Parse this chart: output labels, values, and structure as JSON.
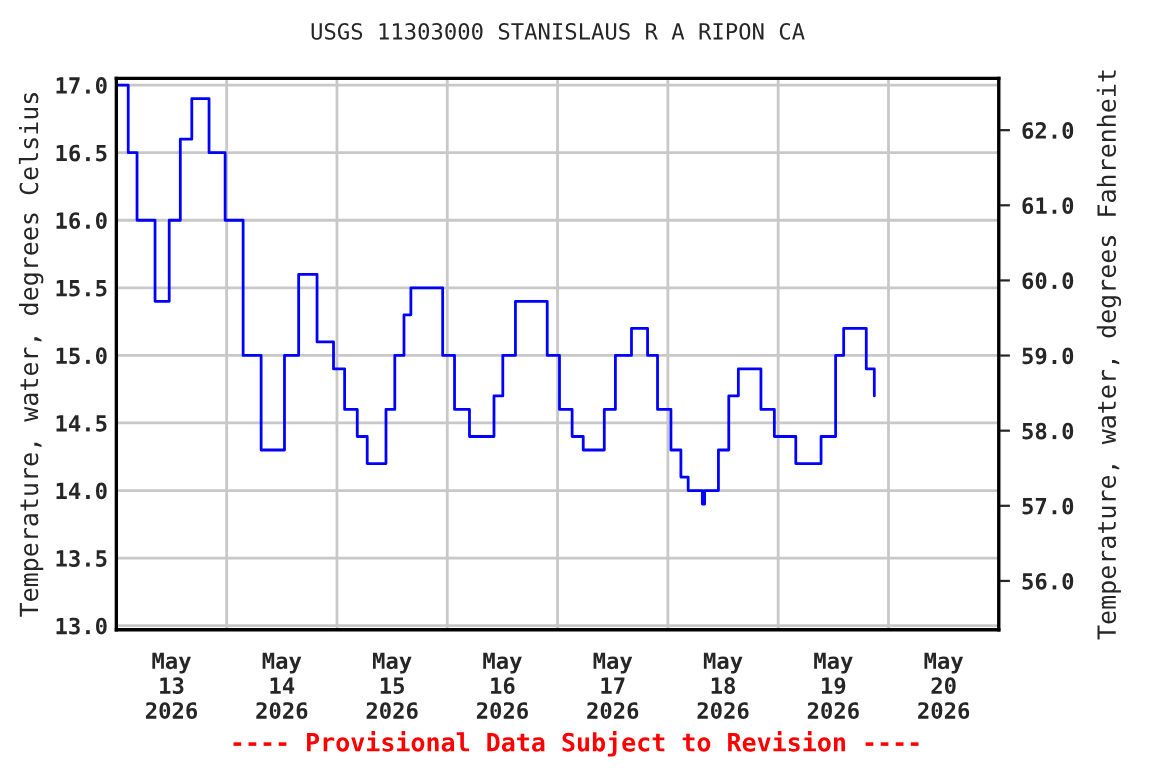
{
  "chart_data": {
    "type": "step",
    "title": "USGS 11303000 STANISLAUS R A RIPON CA",
    "ylabel": "Temperature, water, degrees Celsius",
    "y2label": "Temperature, water, degrees Fahrenheit",
    "annotations": [
      "---- Provisional Data Subject to Revision ----"
    ],
    "series": [
      {
        "color": "#0000ff",
        "x": [
          "2026-05-13T00:00",
          "2026-05-13T02:35",
          "2026-05-13T04:30",
          "2026-05-13T08:25",
          "2026-05-13T09:50",
          "2026-05-13T11:30",
          "2026-05-13T13:55",
          "2026-05-13T16:25",
          "2026-05-13T18:10",
          "2026-05-13T20:10",
          "2026-05-13T23:40",
          "2026-05-14T03:35",
          "2026-05-14T07:30",
          "2026-05-14T08:50",
          "2026-05-14T12:35",
          "2026-05-14T15:40",
          "2026-05-14T17:05",
          "2026-05-14T19:40",
          "2026-05-14T23:15",
          "2026-05-15T01:40",
          "2026-05-15T04:25",
          "2026-05-15T06:35",
          "2026-05-15T08:20",
          "2026-05-15T10:40",
          "2026-05-15T12:35",
          "2026-05-15T14:35",
          "2026-05-15T16:05",
          "2026-05-15T18:50",
          "2026-05-15T23:00",
          "2026-05-16T01:35",
          "2026-05-16T04:50",
          "2026-05-16T08:45",
          "2026-05-16T10:10",
          "2026-05-16T12:05",
          "2026-05-16T14:50",
          "2026-05-16T17:50",
          "2026-05-16T21:45",
          "2026-05-17T00:25",
          "2026-05-17T03:10",
          "2026-05-17T05:35",
          "2026-05-17T08:15",
          "2026-05-17T10:10",
          "2026-05-17T12:35",
          "2026-05-17T16:05",
          "2026-05-17T19:35",
          "2026-05-17T21:45",
          "2026-05-18T00:40",
          "2026-05-18T02:50",
          "2026-05-18T04:25",
          "2026-05-18T06:45",
          "2026-05-18T07:30",
          "2026-05-18T08:00",
          "2026-05-18T11:00",
          "2026-05-18T13:15",
          "2026-05-18T15:20",
          "2026-05-18T17:45",
          "2026-05-18T20:15",
          "2026-05-18T23:10",
          "2026-05-19T03:50",
          "2026-05-19T06:50",
          "2026-05-19T09:20",
          "2026-05-19T12:30",
          "2026-05-19T14:15",
          "2026-05-19T17:45",
          "2026-05-19T19:10",
          "2026-05-19T20:55"
        ],
        "values": [
          17.0,
          16.5,
          16.0,
          15.4,
          15.4,
          16.0,
          16.6,
          16.9,
          16.9,
          16.5,
          16.0,
          15.0,
          14.3,
          14.3,
          15.0,
          15.6,
          15.6,
          15.1,
          14.9,
          14.6,
          14.4,
          14.2,
          14.2,
          14.6,
          15.0,
          15.3,
          15.5,
          15.5,
          15.0,
          14.6,
          14.4,
          14.4,
          14.7,
          15.0,
          15.4,
          15.4,
          15.0,
          14.6,
          14.4,
          14.3,
          14.3,
          14.6,
          15.0,
          15.2,
          15.0,
          14.6,
          14.3,
          14.1,
          14.0,
          14.0,
          13.9,
          14.0,
          14.3,
          14.7,
          14.9,
          14.9,
          14.6,
          14.4,
          14.2,
          14.2,
          14.4,
          15.0,
          15.2,
          15.2,
          14.9,
          14.7
        ]
      }
    ],
    "xlim": [
      "2026-05-13T00:00",
      "2026-05-21T00:00"
    ],
    "xticks": [
      {
        "value": "2026-05-14T00:00",
        "label": null
      },
      {
        "value": "2026-05-15T00:00",
        "label": null
      },
      {
        "value": "2026-05-16T00:00",
        "label": null
      },
      {
        "value": "2026-05-17T00:00",
        "label": null
      },
      {
        "value": "2026-05-18T00:00",
        "label": null
      },
      {
        "value": "2026-05-19T00:00",
        "label": null
      },
      {
        "value": "2026-05-20T00:00",
        "label": null
      },
      {
        "value": "2026-05-13T12:00",
        "label": "May\n13\n2026"
      },
      {
        "value": "2026-05-14T12:00",
        "label": "May\n14\n2026"
      },
      {
        "value": "2026-05-15T12:00",
        "label": "May\n15\n2026"
      },
      {
        "value": "2026-05-16T12:00",
        "label": "May\n16\n2026"
      },
      {
        "value": "2026-05-17T12:00",
        "label": "May\n17\n2026"
      },
      {
        "value": "2026-05-18T12:00",
        "label": "May\n18\n2026"
      },
      {
        "value": "2026-05-19T12:00",
        "label": "May\n19\n2026"
      },
      {
        "value": "2026-05-20T12:00",
        "label": "May\n20\n2026"
      }
    ],
    "ylim": [
      12.97,
      17.05
    ],
    "yticks": [
      {
        "value": 13,
        "label": "13.0"
      },
      {
        "value": 13.5,
        "label": "13.5"
      },
      {
        "value": 14,
        "label": "14.0"
      },
      {
        "value": 14.5,
        "label": "14.5"
      },
      {
        "value": 15,
        "label": "15.0"
      },
      {
        "value": 15.5,
        "label": "15.5"
      },
      {
        "value": 16,
        "label": "16.0"
      },
      {
        "value": 16.5,
        "label": "16.5"
      },
      {
        "value": 17,
        "label": "17.0"
      }
    ],
    "y2lim": [
      55.35,
      62.69
    ],
    "y2ticks": [
      {
        "value": 56,
        "label": "56.0"
      },
      {
        "value": 57,
        "label": "57.0"
      },
      {
        "value": 58,
        "label": "58.0"
      },
      {
        "value": 59,
        "label": "59.0"
      },
      {
        "value": 60,
        "label": "60.0"
      },
      {
        "value": 61,
        "label": "61.0"
      },
      {
        "value": 62,
        "label": "62.0"
      }
    ],
    "grid": true
  }
}
